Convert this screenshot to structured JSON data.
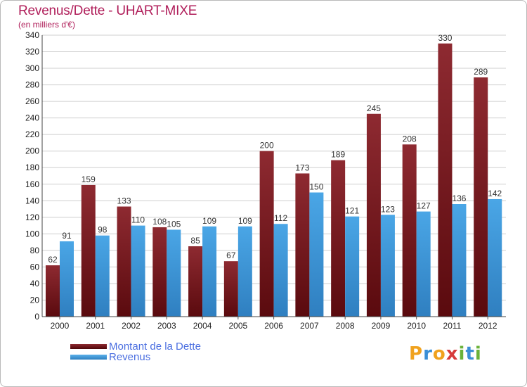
{
  "header": {
    "title": "Revenus/Dette - UHART-MIXE",
    "subtitle": "(en milliers d'€)"
  },
  "legend": {
    "items": [
      {
        "label": "Montant de la Dette",
        "color": "#6b0f14"
      },
      {
        "label": "Revenus",
        "color": "#3f98d8"
      }
    ]
  },
  "logo": {
    "letters": [
      "P",
      "r",
      "o",
      "x",
      "i",
      "t",
      "i"
    ],
    "colors": [
      "#f0a21e",
      "#3b8fd6",
      "#f0a21e",
      "#d63a3a",
      "#6ab23a",
      "#3b8fd6",
      "#6ab23a"
    ]
  },
  "chart_data": {
    "type": "bar",
    "categories": [
      "2000",
      "2001",
      "2002",
      "2003",
      "2004",
      "2005",
      "2006",
      "2007",
      "2008",
      "2009",
      "2010",
      "2011",
      "2012"
    ],
    "series": [
      {
        "name": "Montant de la Dette",
        "values": [
          62,
          159,
          133,
          108,
          85,
          67,
          200,
          173,
          189,
          245,
          208,
          330,
          289
        ],
        "color": "#7a1c22"
      },
      {
        "name": "Revenus",
        "values": [
          91,
          98,
          110,
          105,
          109,
          109,
          112,
          150,
          121,
          123,
          127,
          136,
          142
        ],
        "color": "#3f98d8"
      }
    ],
    "ylim": [
      0,
      340
    ],
    "yticks": [
      0,
      20,
      40,
      60,
      80,
      100,
      120,
      140,
      160,
      180,
      200,
      220,
      240,
      260,
      280,
      300,
      320,
      340
    ],
    "grid": true,
    "legend_position": "bottom-left"
  }
}
